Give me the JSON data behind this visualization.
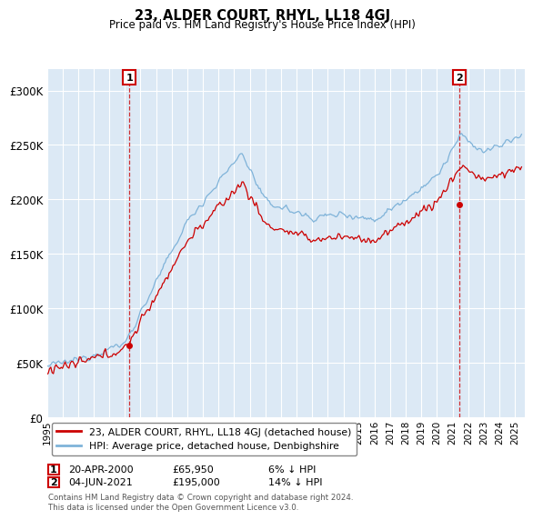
{
  "title": "23, ALDER COURT, RHYL, LL18 4GJ",
  "subtitle": "Price paid vs. HM Land Registry's House Price Index (HPI)",
  "legend_label_red": "23, ALDER COURT, RHYL, LL18 4GJ (detached house)",
  "legend_label_blue": "HPI: Average price, detached house, Denbighshire",
  "annotation1_date": "20-APR-2000",
  "annotation1_price": "£65,950",
  "annotation1_hpi": "6% ↓ HPI",
  "annotation1_year": 2000.3,
  "annotation1_value": 65950,
  "annotation2_date": "04-JUN-2021",
  "annotation2_price": "£195,000",
  "annotation2_hpi": "14% ↓ HPI",
  "annotation2_year": 2021.45,
  "annotation2_value": 195000,
  "ymin": 0,
  "ymax": 320000,
  "yticks": [
    0,
    50000,
    100000,
    150000,
    200000,
    250000,
    300000
  ],
  "background_color": "#ffffff",
  "plot_bg_color": "#dce9f5",
  "red_color": "#cc0000",
  "blue_color": "#7fb3d9",
  "grid_color": "#ffffff",
  "footer": "Contains HM Land Registry data © Crown copyright and database right 2024.\nThis data is licensed under the Open Government Licence v3.0."
}
